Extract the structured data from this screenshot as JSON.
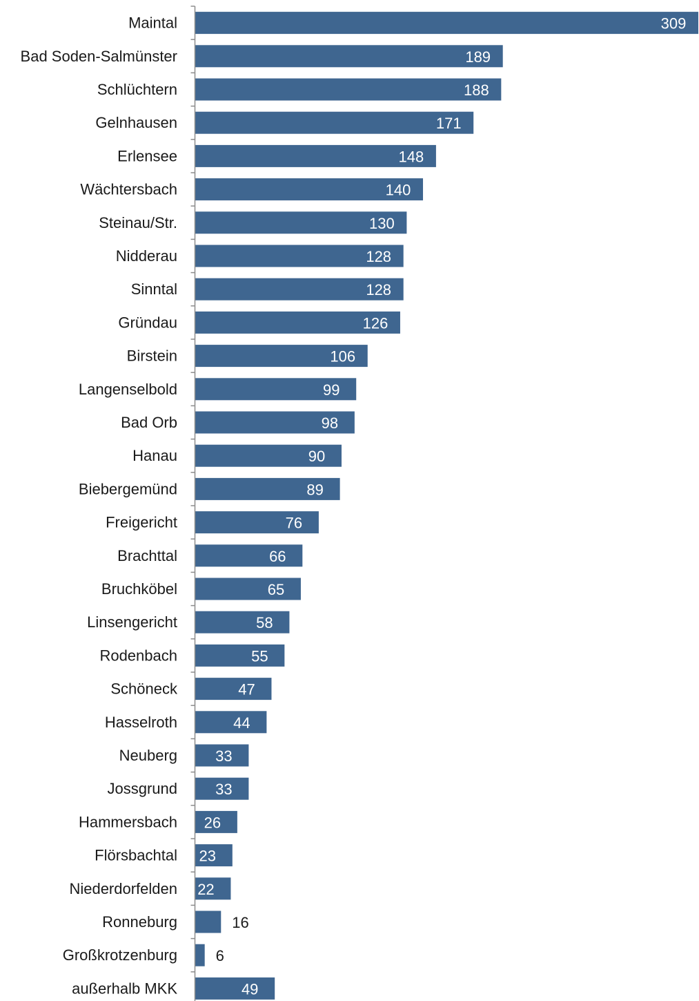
{
  "chart_data": {
    "type": "bar",
    "orientation": "horizontal",
    "title": "",
    "xlabel": "",
    "ylabel": "",
    "categories": [
      "Maintal",
      "Bad Soden-Salmünster",
      "Schlüchtern",
      "Gelnhausen",
      "Erlensee",
      "Wächtersbach",
      "Steinau/Str.",
      "Nidderau",
      "Sinntal",
      "Gründau",
      "Birstein",
      "Langenselbold",
      "Bad Orb",
      "Hanau",
      "Biebergemünd",
      "Freigericht",
      "Brachttal",
      "Bruchköbel",
      "Linsengericht",
      "Rodenbach",
      "Schöneck",
      "Hasselroth",
      "Neuberg",
      "Jossgrund",
      "Hammersbach",
      "Flörsbachtal",
      "Niederdorfelden",
      "Ronneburg",
      "Großkrotzenburg",
      "außerhalb MKK"
    ],
    "values": [
      309,
      189,
      188,
      171,
      148,
      140,
      130,
      128,
      128,
      126,
      106,
      99,
      98,
      90,
      89,
      76,
      66,
      65,
      58,
      55,
      47,
      44,
      33,
      33,
      26,
      23,
      22,
      16,
      6,
      49
    ],
    "xlim": [
      0,
      309
    ],
    "grid": false,
    "legend": "none",
    "bar_color": "#3f6690",
    "label_inside_color": "#ffffff",
    "label_outside_color": "#1a1a1a"
  }
}
